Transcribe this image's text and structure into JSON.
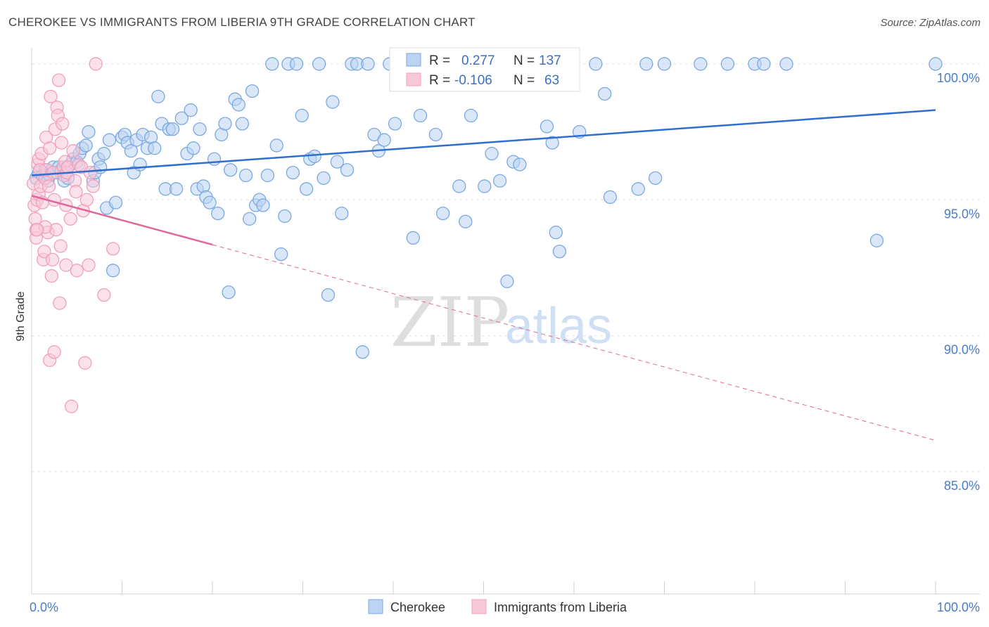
{
  "title": "CHEROKEE VS IMMIGRANTS FROM LIBERIA 9TH GRADE CORRELATION CHART",
  "source": "Source: ZipAtlas.com",
  "chart_data": {
    "type": "scatter",
    "xlabel": "",
    "ylabel": "9th Grade",
    "xlim": [
      0,
      100
    ],
    "ylim": [
      80.5,
      100.8
    ],
    "x_tick_labels": [
      "0.0%",
      "100.0%"
    ],
    "y_ticks": [
      {
        "value": 100,
        "label": "100.0%"
      },
      {
        "value": 95,
        "label": "95.0%"
      },
      {
        "value": 90,
        "label": "90.0%"
      },
      {
        "value": 85,
        "label": "85.0%"
      }
    ],
    "grid": true,
    "legend_position": "top-center",
    "watermark": {
      "zip": "ZIP",
      "atlas": "atlas"
    },
    "series": [
      {
        "name": "Cherokee",
        "color": "#7aa8e0",
        "fill": "#bcd4f2",
        "line_color": "#2f6fcf",
        "R": "0.277",
        "N": "137",
        "trend": {
          "x": [
            0,
            100
          ],
          "y": [
            95.9,
            98.3
          ],
          "dashed_from": null
        },
        "points": [
          [
            0.5,
            95.8
          ],
          [
            0.8,
            96.0
          ],
          [
            1.2,
            95.9
          ],
          [
            1.5,
            96.1
          ],
          [
            1.8,
            95.7
          ],
          [
            2.0,
            95.9
          ],
          [
            2.4,
            96.2
          ],
          [
            2.8,
            96.0
          ],
          [
            3.0,
            96.2
          ],
          [
            3.3,
            96.1
          ],
          [
            3.6,
            95.7
          ],
          [
            4.0,
            95.8
          ],
          [
            4.3,
            96.3
          ],
          [
            4.6,
            96.5
          ],
          [
            5.0,
            96.4
          ],
          [
            5.3,
            96.7
          ],
          [
            5.6,
            96.9
          ],
          [
            6.0,
            97.0
          ],
          [
            6.3,
            97.5
          ],
          [
            6.8,
            95.7
          ],
          [
            7.0,
            96.0
          ],
          [
            7.4,
            96.5
          ],
          [
            7.6,
            96.2
          ],
          [
            8.0,
            96.7
          ],
          [
            8.3,
            94.7
          ],
          [
            8.6,
            97.2
          ],
          [
            9.0,
            92.4
          ],
          [
            9.3,
            94.9
          ],
          [
            10.0,
            97.3
          ],
          [
            10.3,
            97.4
          ],
          [
            10.6,
            97.1
          ],
          [
            11.0,
            96.8
          ],
          [
            11.3,
            96.0
          ],
          [
            11.6,
            97.2
          ],
          [
            12.0,
            96.3
          ],
          [
            12.3,
            97.4
          ],
          [
            12.8,
            96.9
          ],
          [
            13.2,
            97.3
          ],
          [
            13.6,
            96.9
          ],
          [
            14.0,
            98.8
          ],
          [
            14.4,
            97.8
          ],
          [
            14.8,
            95.4
          ],
          [
            15.2,
            97.6
          ],
          [
            15.6,
            97.6
          ],
          [
            16.0,
            95.4
          ],
          [
            16.6,
            98.0
          ],
          [
            17.2,
            96.7
          ],
          [
            17.6,
            98.3
          ],
          [
            17.9,
            96.9
          ],
          [
            18.3,
            95.4
          ],
          [
            18.6,
            97.6
          ],
          [
            19.0,
            95.5
          ],
          [
            19.3,
            95.1
          ],
          [
            19.7,
            94.9
          ],
          [
            20.2,
            96.5
          ],
          [
            20.6,
            94.5
          ],
          [
            21.0,
            97.4
          ],
          [
            21.4,
            97.8
          ],
          [
            21.8,
            91.6
          ],
          [
            22.0,
            96.1
          ],
          [
            22.5,
            98.7
          ],
          [
            22.9,
            98.5
          ],
          [
            23.3,
            97.8
          ],
          [
            23.7,
            95.9
          ],
          [
            24.1,
            94.3
          ],
          [
            24.4,
            99.0
          ],
          [
            24.8,
            94.8
          ],
          [
            25.2,
            95.0
          ],
          [
            25.6,
            94.8
          ],
          [
            26.1,
            95.9
          ],
          [
            26.6,
            100.0
          ],
          [
            27.1,
            97.0
          ],
          [
            27.6,
            93.0
          ],
          [
            28.0,
            94.4
          ],
          [
            28.4,
            100.0
          ],
          [
            28.9,
            96.0
          ],
          [
            29.3,
            100.0
          ],
          [
            29.9,
            98.1
          ],
          [
            30.4,
            95.4
          ],
          [
            30.8,
            96.5
          ],
          [
            31.3,
            96.6
          ],
          [
            31.8,
            100.0
          ],
          [
            32.3,
            95.8
          ],
          [
            32.8,
            91.5
          ],
          [
            33.3,
            98.6
          ],
          [
            33.8,
            96.4
          ],
          [
            34.3,
            94.5
          ],
          [
            34.9,
            96.1
          ],
          [
            35.4,
            100.0
          ],
          [
            36.0,
            100.0
          ],
          [
            36.6,
            89.4
          ],
          [
            37.2,
            100.0
          ],
          [
            37.9,
            97.4
          ],
          [
            38.4,
            96.8
          ],
          [
            39.0,
            97.2
          ],
          [
            39.6,
            100.0
          ],
          [
            40.2,
            97.8
          ],
          [
            40.8,
            100.0
          ],
          [
            41.5,
            100.0
          ],
          [
            42.2,
            93.6
          ],
          [
            43.0,
            98.1
          ],
          [
            43.8,
            100.0
          ],
          [
            44.7,
            97.4
          ],
          [
            45.5,
            94.5
          ],
          [
            46.4,
            100.0
          ],
          [
            47.3,
            95.5
          ],
          [
            48.0,
            94.2
          ],
          [
            48.6,
            98.1
          ],
          [
            49.4,
            100.0
          ],
          [
            50.1,
            95.5
          ],
          [
            50.9,
            96.7
          ],
          [
            51.8,
            95.7
          ],
          [
            52.6,
            92.0
          ],
          [
            53.3,
            96.4
          ],
          [
            54.0,
            96.3
          ],
          [
            55.0,
            100.0
          ],
          [
            56.0,
            100.0
          ],
          [
            57.0,
            97.7
          ],
          [
            57.6,
            97.1
          ],
          [
            58.0,
            93.8
          ],
          [
            58.4,
            93.1
          ],
          [
            59.2,
            100.0
          ],
          [
            60.6,
            97.5
          ],
          [
            62.4,
            100.0
          ],
          [
            63.4,
            98.9
          ],
          [
            64.0,
            95.1
          ],
          [
            67.1,
            95.4
          ],
          [
            68.0,
            100.0
          ],
          [
            69.0,
            95.8
          ],
          [
            70.0,
            100.0
          ],
          [
            74.0,
            100.0
          ],
          [
            77.0,
            100.0
          ],
          [
            80.0,
            100.0
          ],
          [
            81.0,
            100.0
          ],
          [
            83.5,
            100.0
          ],
          [
            93.5,
            93.5
          ],
          [
            100.0,
            100.0
          ]
        ]
      },
      {
        "name": "Immigrants from Liberia",
        "color": "#f0a0bc",
        "fill": "#f7c9d8",
        "line_color": "#e0679a",
        "R": "-0.106",
        "N": "63",
        "trend": {
          "x": [
            0,
            100
          ],
          "y": [
            95.15,
            86.15
          ],
          "solid_until": 20
        },
        "points": [
          [
            0.2,
            95.6
          ],
          [
            0.3,
            94.8
          ],
          [
            0.4,
            94.3
          ],
          [
            0.5,
            93.6
          ],
          [
            0.5,
            93.9
          ],
          [
            0.6,
            95.0
          ],
          [
            0.7,
            96.3
          ],
          [
            0.8,
            95.2
          ],
          [
            0.8,
            96.5
          ],
          [
            1.0,
            95.5
          ],
          [
            1.1,
            96.7
          ],
          [
            1.2,
            94.9
          ],
          [
            1.3,
            92.8
          ],
          [
            1.4,
            93.1
          ],
          [
            1.5,
            95.8
          ],
          [
            1.6,
            97.3
          ],
          [
            1.7,
            96.1
          ],
          [
            1.8,
            93.8
          ],
          [
            1.9,
            95.5
          ],
          [
            2.0,
            96.9
          ],
          [
            2.0,
            89.1
          ],
          [
            2.1,
            98.8
          ],
          [
            2.2,
            92.2
          ],
          [
            2.3,
            92.8
          ],
          [
            2.4,
            96.0
          ],
          [
            2.5,
            89.4
          ],
          [
            2.6,
            97.6
          ],
          [
            2.7,
            93.9
          ],
          [
            2.8,
            98.4
          ],
          [
            2.9,
            98.1
          ],
          [
            3.0,
            99.4
          ],
          [
            3.1,
            91.2
          ],
          [
            3.2,
            93.3
          ],
          [
            3.3,
            97.1
          ],
          [
            3.4,
            97.8
          ],
          [
            3.5,
            96.2
          ],
          [
            3.6,
            95.9
          ],
          [
            3.7,
            96.4
          ],
          [
            3.8,
            92.6
          ],
          [
            3.9,
            96.0
          ],
          [
            4.0,
            96.2
          ],
          [
            4.3,
            94.3
          ],
          [
            4.4,
            87.4
          ],
          [
            4.6,
            96.8
          ],
          [
            4.8,
            95.7
          ],
          [
            5.0,
            92.4
          ],
          [
            5.2,
            96.3
          ],
          [
            5.5,
            96.2
          ],
          [
            5.7,
            94.6
          ],
          [
            5.9,
            89.0
          ],
          [
            6.1,
            95.0
          ],
          [
            6.3,
            92.6
          ],
          [
            6.5,
            96.0
          ],
          [
            6.8,
            95.5
          ],
          [
            7.1,
            100.0
          ],
          [
            8.0,
            91.5
          ],
          [
            9.0,
            93.2
          ],
          [
            0.9,
            96.1
          ],
          [
            1.5,
            94.0
          ],
          [
            2.5,
            95.0
          ],
          [
            3.8,
            94.8
          ],
          [
            4.9,
            95.3
          ],
          [
            0.6,
            93.9
          ]
        ]
      }
    ]
  }
}
